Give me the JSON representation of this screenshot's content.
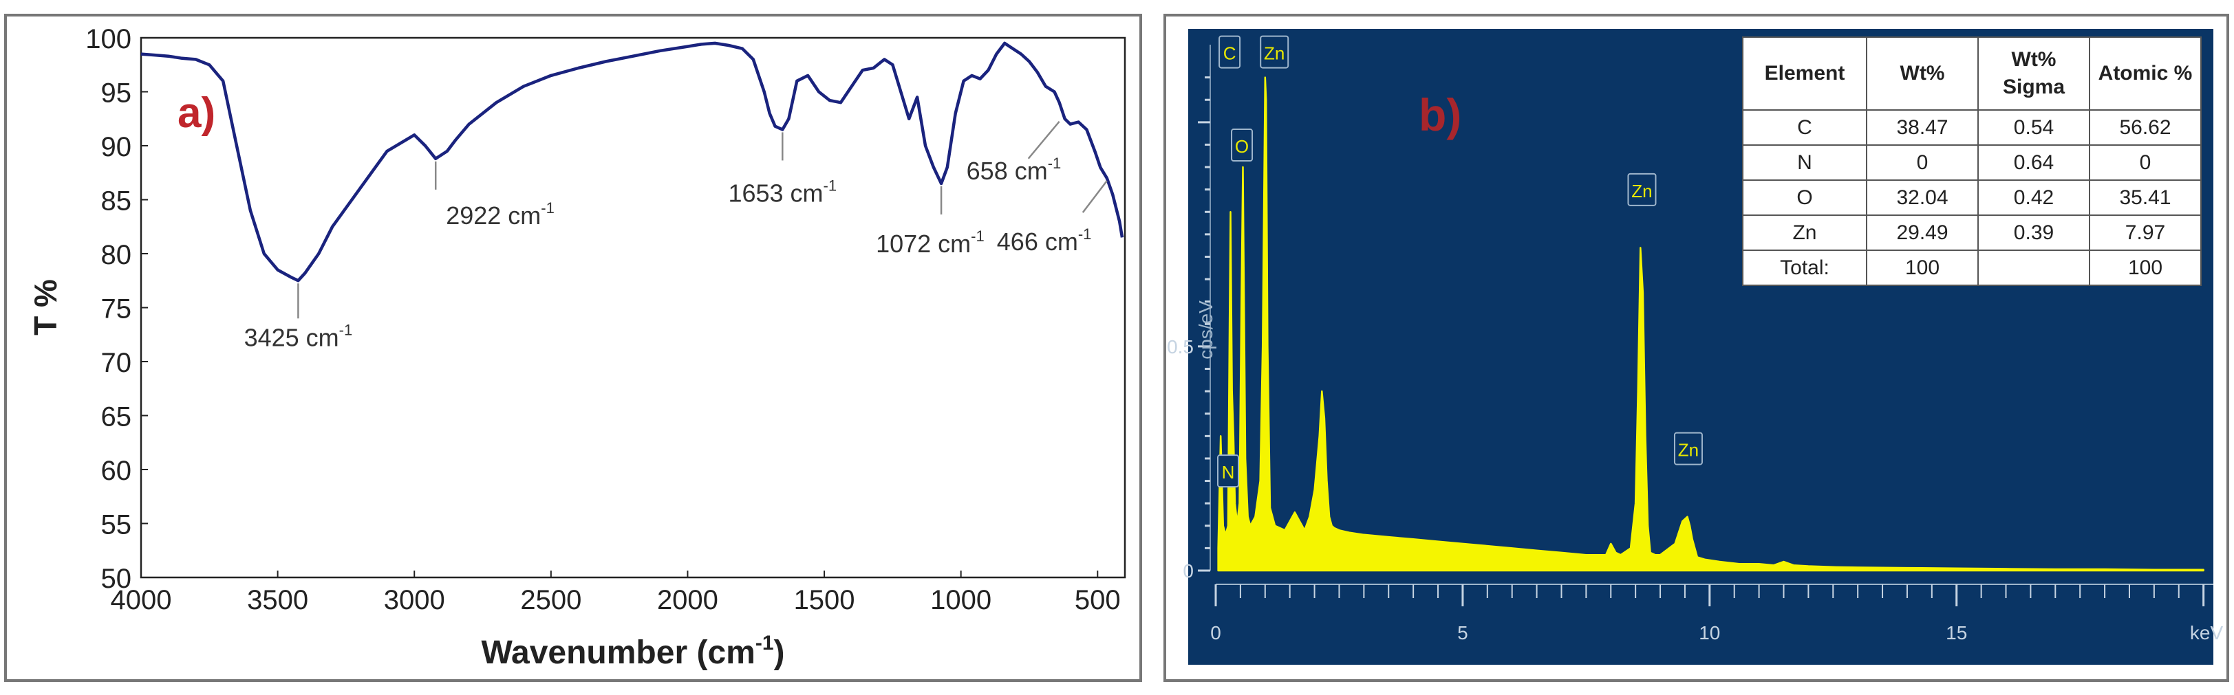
{
  "chart_data": [
    {
      "type": "line",
      "panel_label": "a)",
      "xlabel": "Wavenumber (cm",
      "xlabel_exp": "-1",
      "xlabel_close": ")",
      "ylabel": "T %",
      "xlim": [
        4000,
        400
      ],
      "ylim": [
        50,
        100
      ],
      "x_ticks": [
        4000,
        3500,
        3000,
        2500,
        2000,
        1500,
        1000,
        500
      ],
      "y_ticks": [
        50,
        55,
        60,
        65,
        70,
        75,
        80,
        85,
        90,
        95,
        100
      ],
      "series": [
        {
          "color": "#1a237e",
          "x": [
            4000,
            3950,
            3900,
            3850,
            3800,
            3750,
            3700,
            3650,
            3600,
            3550,
            3500,
            3450,
            3425,
            3400,
            3350,
            3300,
            3200,
            3100,
            3000,
            2960,
            2922,
            2880,
            2850,
            2800,
            2700,
            2600,
            2500,
            2400,
            2300,
            2200,
            2100,
            2000,
            1950,
            1900,
            1850,
            1800,
            1760,
            1720,
            1700,
            1680,
            1653,
            1630,
            1600,
            1560,
            1520,
            1480,
            1440,
            1400,
            1360,
            1320,
            1280,
            1250,
            1220,
            1190,
            1160,
            1130,
            1100,
            1072,
            1050,
            1020,
            990,
            960,
            930,
            900,
            870,
            840,
            810,
            780,
            750,
            720,
            690,
            658,
            640,
            620,
            600,
            570,
            540,
            510,
            490,
            466,
            445,
            430,
            420,
            410
          ],
          "y": [
            98.5,
            98.4,
            98.3,
            98.1,
            98.0,
            97.5,
            96.0,
            90.0,
            84.0,
            80.0,
            78.5,
            77.8,
            77.5,
            78.2,
            80.0,
            82.5,
            86.0,
            89.5,
            91.0,
            90.0,
            88.8,
            89.5,
            90.5,
            92.0,
            94.0,
            95.5,
            96.5,
            97.2,
            97.8,
            98.3,
            98.8,
            99.2,
            99.4,
            99.5,
            99.3,
            99.0,
            98.0,
            95.0,
            93.0,
            91.8,
            91.5,
            92.5,
            96.0,
            96.5,
            95.0,
            94.2,
            94.0,
            95.5,
            97.0,
            97.2,
            98.0,
            97.5,
            95.0,
            92.5,
            94.5,
            90.0,
            88.0,
            86.5,
            88.0,
            93.0,
            96.0,
            96.5,
            96.2,
            97.0,
            98.5,
            99.5,
            99.0,
            98.5,
            97.8,
            96.8,
            95.5,
            95.0,
            94.0,
            92.5,
            92.0,
            92.2,
            91.5,
            89.5,
            88.0,
            87.0,
            85.5,
            84.0,
            83.0,
            81.5
          ]
        }
      ],
      "annotations": [
        {
          "text": "3425 cm",
          "exp": "-1",
          "x": 3425,
          "y": 77.5
        },
        {
          "text": "2922 cm",
          "exp": "-1",
          "x": 2922,
          "y": 88.8
        },
        {
          "text": "1653 cm",
          "exp": "-1",
          "x": 1653,
          "y": 91.5
        },
        {
          "text": "1072 cm",
          "exp": "-1",
          "x": 1072,
          "y": 86.5
        },
        {
          "text": "658 cm",
          "exp": "-1",
          "x": 640,
          "y": 92.5
        },
        {
          "text": "466 cm",
          "exp": "-1",
          "x": 466,
          "y": 87.0
        }
      ]
    },
    {
      "type": "area",
      "panel_label": "b)",
      "xlabel": "keV",
      "ylabel": "cps/eV",
      "xlim": [
        0,
        20.2
      ],
      "ylim": [
        0,
        1.15
      ],
      "x_ticks": [
        0,
        5,
        10,
        15
      ],
      "y_ticks": [
        0,
        0.5
      ],
      "series": [
        {
          "color": "#f5f500",
          "x": [
            0.05,
            0.1,
            0.15,
            0.2,
            0.25,
            0.28,
            0.3,
            0.33,
            0.36,
            0.39,
            0.42,
            0.45,
            0.48,
            0.52,
            0.55,
            0.6,
            0.65,
            0.7,
            0.8,
            0.9,
            0.95,
            1.0,
            1.02,
            1.05,
            1.1,
            1.2,
            1.4,
            1.6,
            1.7,
            1.8,
            1.9,
            2.0,
            2.1,
            2.15,
            2.2,
            2.25,
            2.3,
            2.35,
            2.4,
            2.5,
            2.7,
            3.0,
            3.5,
            4.0,
            4.5,
            5.0,
            5.5,
            6.0,
            6.5,
            7.0,
            7.5,
            7.9,
            8.0,
            8.1,
            8.2,
            8.4,
            8.5,
            8.55,
            8.6,
            8.65,
            8.7,
            8.75,
            8.8,
            8.9,
            9.0,
            9.3,
            9.45,
            9.55,
            9.6,
            9.65,
            9.75,
            9.9,
            10.2,
            10.6,
            11.0,
            11.3,
            11.5,
            11.7,
            12.0,
            12.5,
            13.0,
            14.0,
            15.0,
            16.0,
            17.0,
            18.0,
            19.0,
            20.0
          ],
          "y": [
            0.05,
            0.3,
            0.1,
            0.08,
            0.1,
            0.55,
            0.8,
            0.4,
            0.3,
            0.15,
            0.12,
            0.12,
            0.15,
            0.6,
            0.9,
            0.25,
            0.12,
            0.1,
            0.12,
            0.2,
            0.5,
            1.1,
            1.05,
            0.5,
            0.14,
            0.1,
            0.09,
            0.13,
            0.11,
            0.09,
            0.12,
            0.18,
            0.3,
            0.4,
            0.34,
            0.2,
            0.12,
            0.1,
            0.095,
            0.09,
            0.085,
            0.08,
            0.075,
            0.07,
            0.065,
            0.06,
            0.055,
            0.05,
            0.045,
            0.04,
            0.035,
            0.035,
            0.06,
            0.04,
            0.035,
            0.05,
            0.15,
            0.4,
            0.72,
            0.62,
            0.3,
            0.1,
            0.04,
            0.035,
            0.035,
            0.06,
            0.11,
            0.12,
            0.1,
            0.07,
            0.03,
            0.025,
            0.02,
            0.015,
            0.015,
            0.012,
            0.02,
            0.012,
            0.01,
            0.008,
            0.007,
            0.006,
            0.005,
            0.004,
            0.003,
            0.003,
            0.002,
            0.002
          ]
        }
      ],
      "peak_labels": [
        {
          "text": "C",
          "x": 0.28,
          "y": 1.1
        },
        {
          "text": "O",
          "x": 0.53,
          "y": 0.9
        },
        {
          "text": "Zn",
          "x": 1.02,
          "y": 1.1
        },
        {
          "text": "N",
          "x": 0.39,
          "y": 0.15
        },
        {
          "text": "Zn",
          "x": 8.63,
          "y": 0.77
        },
        {
          "text": "Zn",
          "x": 9.57,
          "y": 0.2
        }
      ],
      "table": {
        "headers": [
          "Element",
          "Wt%",
          "Wt% Sigma",
          "Atomic %"
        ],
        "rows": [
          [
            "C",
            "38.47",
            "0.54",
            "56.62"
          ],
          [
            "N",
            "0",
            "0.64",
            "0"
          ],
          [
            "O",
            "32.04",
            "0.42",
            "35.41"
          ],
          [
            "Zn",
            "29.49",
            "0.39",
            "7.97"
          ],
          [
            "Total:",
            "100",
            "",
            "100"
          ]
        ]
      }
    }
  ]
}
